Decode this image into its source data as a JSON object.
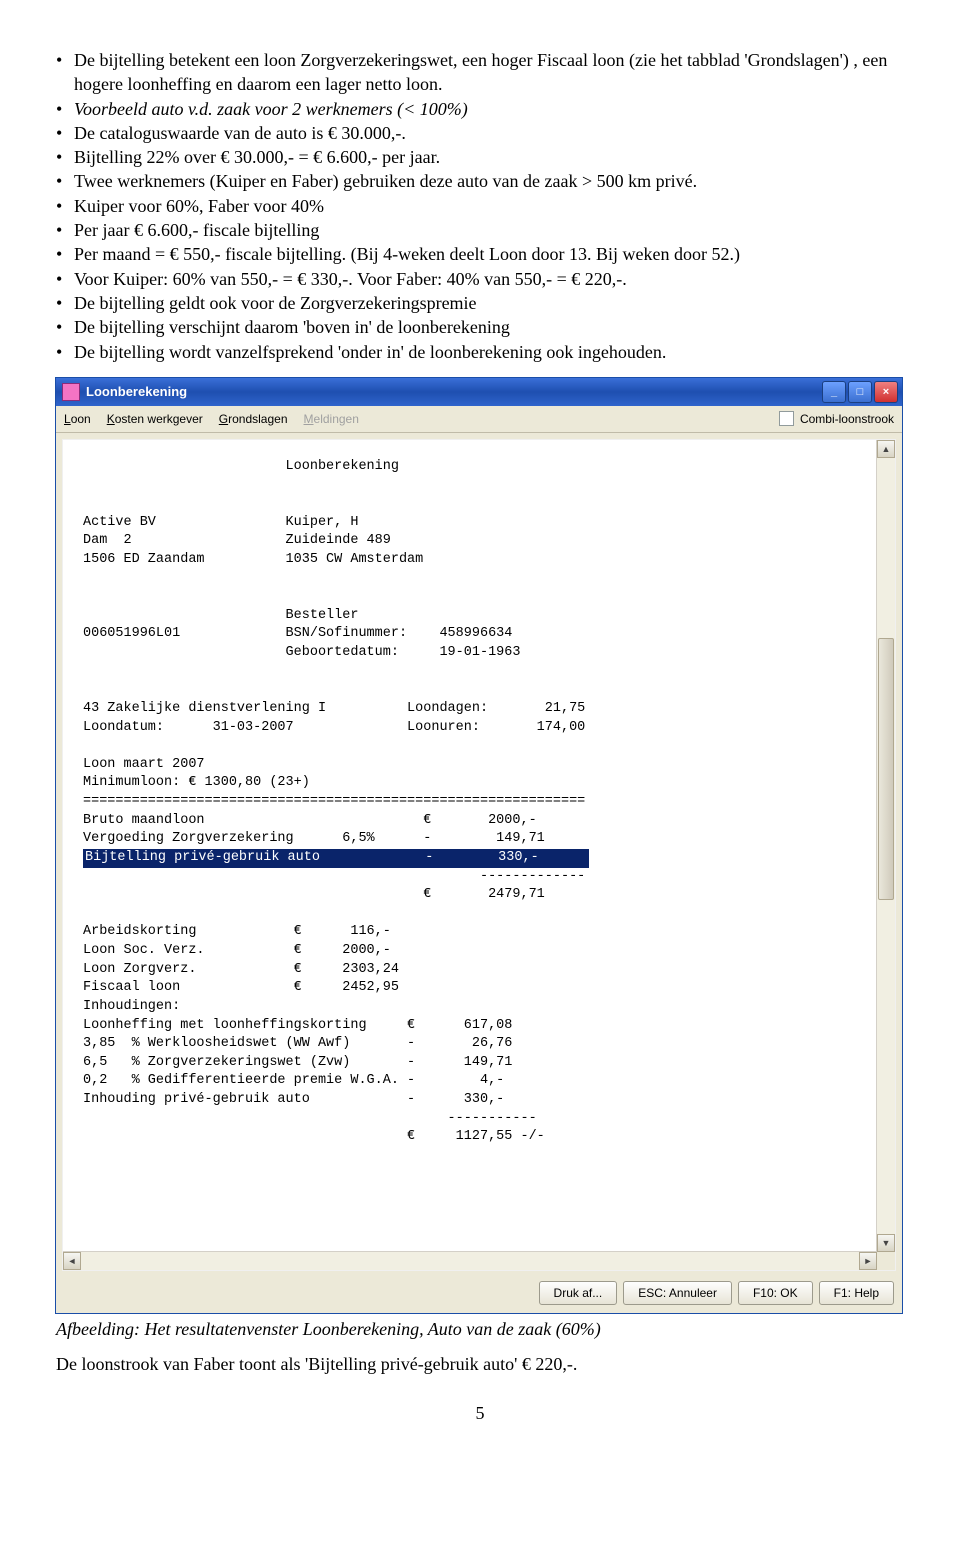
{
  "bullets": [
    "De bijtelling betekent een loon Zorgverzekeringswet, een hoger Fiscaal loon (zie het tabblad 'Grondslagen') , een hogere  loonheffing en daarom een lager netto loon.",
    "Voorbeeld auto v.d. zaak voor 2 werknemers (< 100%)",
    "De cataloguswaarde van de auto is € 30.000,-.",
    "Bijtelling 22% over € 30.000,- = € 6.600,- per jaar.",
    "Twee werknemers (Kuiper en Faber) gebruiken deze auto van de zaak > 500 km privé.",
    "Kuiper voor 60%, Faber voor 40%",
    "Per jaar € 6.600,- fiscale bijtelling",
    "Per maand = € 550,- fiscale bijtelling. (Bij 4-weken deelt Loon door 13. Bij weken door 52.)",
    "Voor Kuiper: 60% van 550,- = € 330,-.  Voor Faber: 40% van 550,- = € 220,-.",
    "De bijtelling geldt ook voor de Zorgverzekeringspremie",
    "De bijtelling verschijnt daarom 'boven in' de loonberekening",
    "De bijtelling wordt vanzelfsprekend 'onder in' de loonberekening ook ingehouden."
  ],
  "italic_index": 1,
  "window": {
    "title": "Loonberekening",
    "menu": {
      "loon": "Loon",
      "kosten": "Kosten werkgever",
      "grond": "Grondslagen",
      "meld": "Meldingen",
      "combi": "Combi-loonstrook"
    },
    "buttons": {
      "print": "Druk af...",
      "esc": "ESC: Annuleer",
      "ok": "F10: OK",
      "help": "F1: Help"
    },
    "report_pre": "                         Loonberekening\n\n\nActive BV                Kuiper, H\nDam  2                   Zuideinde 489\n1506 ED Zaandam          1035 CW Amsterdam\n\n\n                         Besteller\n006051996L01             BSN/Sofinummer:    458996634\n                         Geboortedatum:     19-01-1963\n\n\n43 Zakelijke dienstverlening I          Loondagen:       21,75\nLoondatum:      31-03-2007              Loonuren:       174,00\n\nLoon maart 2007\nMinimumloon: € 1300,80 (23+)\n==============================================================\nBruto maandloon                           €       2000,-\nVergoeding Zorgverzekering      6,5%      -        149,71\n",
    "report_hl": "Bijtelling privé-gebruik auto             -        330,-      ",
    "report_post": "\n                                                 -------------\n                                          €       2479,71\n\nArbeidskorting            €      116,-\nLoon Soc. Verz.           €     2000,-\nLoon Zorgverz.            €     2303,24\nFiscaal loon              €     2452,95\nInhoudingen:\nLoonheffing met loonheffingskorting     €      617,08\n3,85  % Werkloosheidswet (WW Awf)       -       26,76\n6,5   % Zorgverzekeringswet (Zvw)       -      149,71\n0,2   % Gedifferentieerde premie W.G.A. -        4,-\nInhouding privé-gebruik auto            -      330,-\n                                             -----------\n                                        €     1127,55 -/-"
  },
  "caption": "Afbeelding: Het resultatenvenster Loonberekening, Auto van de zaak (60%)",
  "closing": "De loonstrook van Faber toont als 'Bijtelling privé-gebruik auto' € 220,-.",
  "page_num": "5"
}
